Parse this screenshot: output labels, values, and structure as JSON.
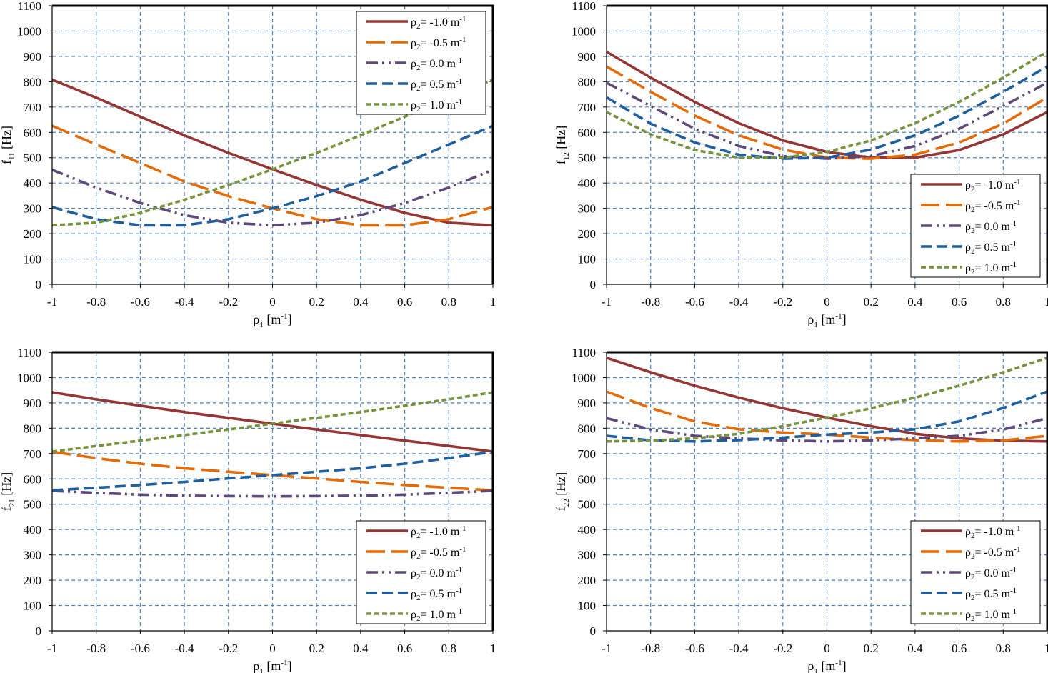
{
  "figure": {
    "colors": {
      "grid": "#4f81bd",
      "frame": "#000000",
      "series": [
        "#943634",
        "#e36c09",
        "#5f497a",
        "#1f5f9f",
        "#77933c"
      ]
    },
    "legend_entries": [
      {
        "label": "ρ",
        "sub": "2",
        "value": "= -1.0 m",
        "sup": "-1"
      },
      {
        "label": "ρ",
        "sub": "2",
        "value": "= -0.5 m",
        "sup": "-1"
      },
      {
        "label": "ρ",
        "sub": "2",
        "value": "=  0.0 m",
        "sup": "-1"
      },
      {
        "label": "ρ",
        "sub": "2",
        "value": "=  0.5 m",
        "sup": "-1"
      },
      {
        "label": "ρ",
        "sub": "2",
        "value": "=  1.0 m",
        "sup": "-1"
      }
    ],
    "x_axis_label": {
      "main": "ρ",
      "sub": "1",
      "unit": " [m",
      "sup": "-1",
      "close": "]"
    },
    "x_ticks": [
      "-1",
      "-0.8",
      "-0.6",
      "-0.4",
      "-0.2",
      "0",
      "0.2",
      "0.4",
      "0.6",
      "0.8",
      "1"
    ],
    "y_ticks": [
      "0",
      "100",
      "200",
      "300",
      "400",
      "500",
      "600",
      "700",
      "800",
      "900",
      "1000",
      "1100"
    ]
  },
  "chart_data": [
    {
      "type": "line",
      "ylabel": {
        "main": "f",
        "sub": "11",
        "unit": " [Hz]"
      },
      "xlim": [
        -1,
        1
      ],
      "ylim": [
        0,
        1100
      ],
      "grid": true,
      "legend_position": "top-right",
      "x": [
        -1,
        -0.8,
        -0.6,
        -0.4,
        -0.2,
        0,
        0.2,
        0.4,
        0.6,
        0.8,
        1
      ],
      "series": [
        {
          "name": "ρ2 = -1.0 m-1",
          "values": [
            808,
            737,
            662,
            588,
            519,
            454,
            392,
            334,
            282,
            243,
            233
          ]
        },
        {
          "name": "ρ2 = -0.5 m-1",
          "values": [
            626,
            552,
            479,
            406,
            348,
            300,
            257,
            233,
            233,
            257,
            305
          ]
        },
        {
          "name": "ρ2 = 0.0 m-1",
          "values": [
            452,
            382,
            321,
            273,
            243,
            233,
            243,
            273,
            321,
            382,
            452
          ]
        },
        {
          "name": "ρ2 = 0.5 m-1",
          "values": [
            305,
            257,
            233,
            233,
            257,
            300,
            348,
            406,
            479,
            552,
            626
          ]
        },
        {
          "name": "ρ2 = 1.0 m-1",
          "values": [
            233,
            243,
            282,
            334,
            392,
            454,
            519,
            588,
            662,
            737,
            808
          ]
        }
      ]
    },
    {
      "type": "line",
      "ylabel": {
        "main": "f",
        "sub": "12",
        "unit": " [Hz]"
      },
      "xlim": [
        -1,
        1
      ],
      "ylim": [
        0,
        1100
      ],
      "grid": true,
      "legend_position": "bottom-right",
      "x": [
        -1,
        -0.8,
        -0.6,
        -0.4,
        -0.2,
        0,
        0.2,
        0.4,
        0.6,
        0.8,
        1
      ],
      "series": [
        {
          "name": "ρ2 = -1.0 m-1",
          "values": [
            918,
            816,
            720,
            636,
            568,
            523,
            500,
            500,
            530,
            592,
            680
          ]
        },
        {
          "name": "ρ2 = -0.5 m-1",
          "values": [
            860,
            760,
            666,
            588,
            532,
            500,
            496,
            512,
            560,
            634,
            738
          ]
        },
        {
          "name": "ρ2 = 0.0 m-1",
          "values": [
            796,
            704,
            614,
            546,
            506,
            496,
            506,
            546,
            614,
            704,
            796
          ]
        },
        {
          "name": "ρ2 = 0.5 m-1",
          "values": [
            738,
            634,
            560,
            512,
            496,
            500,
            532,
            588,
            666,
            760,
            860
          ]
        },
        {
          "name": "ρ2 = 1.0 m-1",
          "values": [
            680,
            592,
            530,
            500,
            500,
            523,
            568,
            636,
            720,
            816,
            918
          ]
        }
      ]
    },
    {
      "type": "line",
      "ylabel": {
        "main": "f",
        "sub": "21",
        "unit": " [Hz]"
      },
      "xlim": [
        -1,
        1
      ],
      "ylim": [
        0,
        1100
      ],
      "grid": true,
      "legend_position": "bottom-right",
      "x": [
        -1,
        -0.8,
        -0.6,
        -0.4,
        -0.2,
        0,
        0.2,
        0.4,
        0.6,
        0.8,
        1
      ],
      "series": [
        {
          "name": "ρ2 = -1.0 m-1",
          "values": [
            942,
            914,
            889,
            864,
            841,
            818,
            795,
            773,
            751,
            730,
            708
          ]
        },
        {
          "name": "ρ2 = -0.5 m-1",
          "values": [
            707,
            682,
            660,
            642,
            628,
            615,
            602,
            588,
            576,
            565,
            555
          ]
        },
        {
          "name": "ρ2 = 0.0 m-1",
          "values": [
            553,
            545,
            538,
            534,
            532,
            531,
            532,
            534,
            538,
            545,
            553
          ]
        },
        {
          "name": "ρ2 = 0.5 m-1",
          "values": [
            555,
            565,
            576,
            588,
            602,
            615,
            628,
            642,
            660,
            682,
            707
          ]
        },
        {
          "name": "ρ2 = 1.0 m-1",
          "values": [
            708,
            730,
            751,
            773,
            795,
            818,
            841,
            864,
            889,
            914,
            942
          ]
        }
      ]
    },
    {
      "type": "line",
      "ylabel": {
        "main": "f",
        "sub": "22",
        "unit": " [Hz]"
      },
      "xlim": [
        -1,
        1
      ],
      "ylim": [
        0,
        1100
      ],
      "grid": true,
      "legend_position": "bottom-right",
      "x": [
        -1,
        -0.8,
        -0.6,
        -0.4,
        -0.2,
        0,
        0.2,
        0.4,
        0.6,
        0.8,
        1
      ],
      "series": [
        {
          "name": "ρ2 = -1.0 m-1",
          "values": [
            1078,
            1021,
            968,
            921,
            879,
            842,
            808,
            778,
            760,
            751,
            748
          ]
        },
        {
          "name": "ρ2 = -0.5 m-1",
          "values": [
            945,
            880,
            827,
            796,
            783,
            775,
            763,
            753,
            748,
            752,
            770
          ]
        },
        {
          "name": "ρ2 = 0.0 m-1",
          "values": [
            840,
            795,
            770,
            760,
            752,
            748,
            752,
            760,
            770,
            795,
            840
          ]
        },
        {
          "name": "ρ2 = 0.5 m-1",
          "values": [
            770,
            752,
            748,
            753,
            763,
            775,
            783,
            796,
            827,
            880,
            945
          ]
        },
        {
          "name": "ρ2 = 1.0 m-1",
          "values": [
            748,
            751,
            760,
            778,
            808,
            842,
            879,
            921,
            968,
            1021,
            1078
          ]
        }
      ]
    }
  ]
}
